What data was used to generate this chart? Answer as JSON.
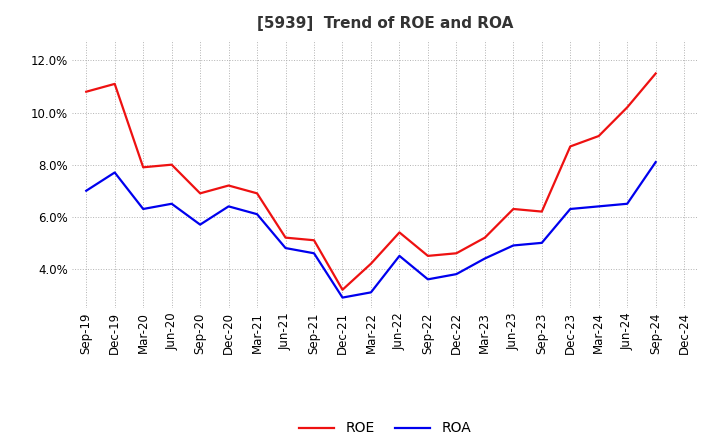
{
  "title": "[5939]  Trend of ROE and ROA",
  "x_labels": [
    "Sep-19",
    "Dec-19",
    "Mar-20",
    "Jun-20",
    "Sep-20",
    "Dec-20",
    "Mar-21",
    "Jun-21",
    "Sep-21",
    "Dec-21",
    "Mar-22",
    "Jun-22",
    "Sep-22",
    "Dec-22",
    "Mar-23",
    "Jun-23",
    "Sep-23",
    "Dec-23",
    "Mar-24",
    "Jun-24",
    "Sep-24",
    "Dec-24"
  ],
  "roe": [
    10.8,
    11.1,
    7.9,
    8.0,
    6.9,
    7.2,
    6.9,
    5.2,
    5.1,
    3.2,
    4.2,
    5.4,
    4.5,
    4.6,
    5.2,
    6.3,
    6.2,
    8.7,
    9.1,
    10.2,
    11.5,
    null
  ],
  "roa": [
    7.0,
    7.7,
    6.3,
    6.5,
    5.7,
    6.4,
    6.1,
    4.8,
    4.6,
    2.9,
    3.1,
    4.5,
    3.6,
    3.8,
    4.4,
    4.9,
    5.0,
    6.3,
    6.4,
    6.5,
    8.1,
    null
  ],
  "ylim": [
    2.5,
    12.8
  ],
  "yticks": [
    4.0,
    6.0,
    8.0,
    10.0,
    12.0
  ],
  "ytick_labels": [
    "4.0%",
    "6.0%",
    "8.0%",
    "10.0%",
    "12.0%"
  ],
  "roe_color": "#ee1111",
  "roa_color": "#0000ee",
  "line_width": 1.6,
  "bg_color": "#ffffff",
  "plot_bg_color": "#ffffff",
  "grid_color": "#aaaaaa",
  "title_fontsize": 11,
  "legend_fontsize": 10,
  "tick_fontsize": 8.5
}
